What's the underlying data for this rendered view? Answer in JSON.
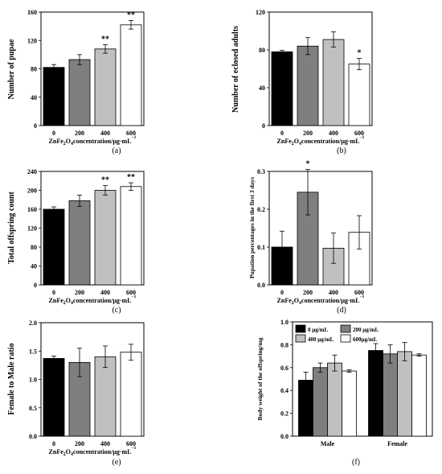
{
  "figure": {
    "width": 550,
    "height": 589
  },
  "chart_data": [
    {
      "panel": "(a)",
      "type": "bar",
      "categories": [
        "0",
        "200",
        "400",
        "600"
      ],
      "values": [
        82,
        93,
        108,
        142
      ],
      "errors": [
        4,
        7,
        6,
        6
      ],
      "significance": [
        "",
        "",
        "**",
        "**"
      ],
      "colors": [
        "#000000",
        "#7f7f7f",
        "#c0c0c0",
        "#ffffff"
      ],
      "ylabel": "Number of pupae",
      "xlabel": {
        "pre": "ZnFe",
        "sub1": "2",
        "mid": "O",
        "sub2": "4",
        "post": "concentration/μg·mL",
        "sup": "−1"
      },
      "ylim": [
        0,
        160
      ],
      "yticks": [
        0,
        40,
        80,
        120,
        160
      ]
    },
    {
      "panel": "(b)",
      "type": "bar",
      "categories": [
        "0",
        "200",
        "400",
        "600"
      ],
      "values": [
        78,
        84,
        91,
        65
      ],
      "errors": [
        1.5,
        9,
        8,
        6
      ],
      "significance": [
        "",
        "",
        "",
        "*"
      ],
      "colors": [
        "#000000",
        "#7f7f7f",
        "#c0c0c0",
        "#ffffff"
      ],
      "ylabel": "Number of eclosed adults",
      "xlabel": {
        "pre": "ZnFe",
        "sub1": "2",
        "mid": "O",
        "sub2": "4",
        "post": "concentration/μg·mL",
        "sup": "−1"
      },
      "ylim": [
        0,
        120
      ],
      "yticks": [
        0,
        40,
        80,
        120
      ]
    },
    {
      "panel": "(c)",
      "type": "bar",
      "categories": [
        "0",
        "200",
        "400",
        "600"
      ],
      "values": [
        160,
        178,
        200,
        208
      ],
      "errors": [
        5,
        12,
        10,
        8
      ],
      "significance": [
        "",
        "",
        "**",
        "**"
      ],
      "colors": [
        "#000000",
        "#7f7f7f",
        "#c0c0c0",
        "#ffffff"
      ],
      "ylabel": "Total offspring count",
      "xlabel": {
        "pre": "ZnFe",
        "sub1": "2",
        "mid": "O",
        "sub2": "4",
        "post": "concentration/μg·mL",
        "sup": "−1"
      },
      "ylim": [
        0,
        240
      ],
      "yticks": [
        0,
        40,
        80,
        120,
        160,
        200,
        240
      ]
    },
    {
      "panel": "(d)",
      "type": "bar",
      "categories": [
        "0",
        "200",
        "400",
        "600"
      ],
      "values": [
        0.1,
        0.245,
        0.097,
        0.139
      ],
      "errors": [
        0.042,
        0.06,
        0.04,
        0.044
      ],
      "significance": [
        "",
        "*",
        "",
        ""
      ],
      "colors": [
        "#000000",
        "#7f7f7f",
        "#c0c0c0",
        "#ffffff"
      ],
      "ylabel": "Pupation percentages in the first 3 days",
      "xlabel": {
        "pre": "ZnFe",
        "sub1": "2",
        "mid": "O",
        "sub2": "4",
        "post": "concentration/μg·mL",
        "sup": "−1"
      },
      "ylim": [
        0,
        0.3
      ],
      "yticks": [
        0.0,
        0.1,
        0.2,
        0.3
      ]
    },
    {
      "panel": "(e)",
      "type": "bar",
      "categories": [
        "0",
        "200",
        "400",
        "600"
      ],
      "values": [
        1.37,
        1.3,
        1.4,
        1.48
      ],
      "errors": [
        0.04,
        0.25,
        0.19,
        0.14
      ],
      "significance": [
        "",
        "",
        "",
        ""
      ],
      "colors": [
        "#000000",
        "#7f7f7f",
        "#c0c0c0",
        "#ffffff"
      ],
      "ylabel": "Female to Male ratio",
      "xlabel": {
        "pre": "ZnFe",
        "sub1": "2",
        "mid": "O",
        "sub2": "4",
        "post": "concentration/μg·mL",
        "sup": "−1"
      },
      "ylim": [
        0,
        2.0
      ],
      "yticks": [
        0.0,
        0.5,
        1.0,
        1.5,
        2.0
      ]
    },
    {
      "panel": "(f)",
      "type": "bar",
      "categories": [
        "Male",
        "Female"
      ],
      "series": [
        {
          "name": "0 μg/mL",
          "color": "#000000",
          "values": [
            0.49,
            0.75
          ],
          "errors": [
            0.07,
            0.06
          ]
        },
        {
          "name": "200 μg/mL",
          "color": "#7f7f7f",
          "values": [
            0.6,
            0.72
          ],
          "errors": [
            0.04,
            0.08
          ]
        },
        {
          "name": "400 μg/mL",
          "color": "#c0c0c0",
          "values": [
            0.64,
            0.74
          ],
          "errors": [
            0.07,
            0.08
          ]
        },
        {
          "name": "600μg/mL",
          "color": "#ffffff",
          "values": [
            0.57,
            0.71
          ],
          "errors": [
            0.01,
            0.01
          ]
        }
      ],
      "legend": "top",
      "ylabel": "Body weight of the offspring/mg",
      "ylim": [
        0,
        1.0
      ],
      "yticks": [
        0.0,
        0.2,
        0.4,
        0.6,
        0.8,
        1.0
      ]
    }
  ]
}
